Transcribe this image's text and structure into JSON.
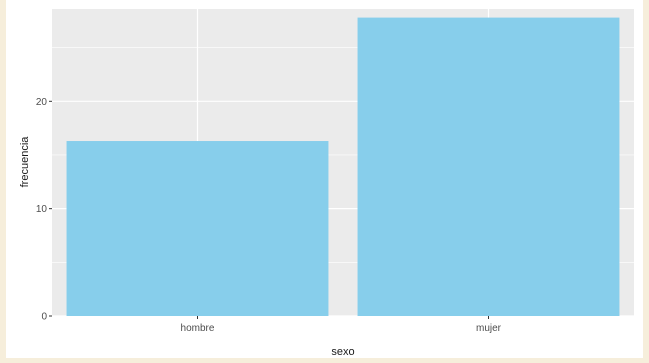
{
  "chart_data": {
    "type": "bar",
    "title": "",
    "xlabel": "sexo",
    "ylabel": "frecuencia",
    "categories": [
      "hombre",
      "mujer"
    ],
    "values": [
      16.3,
      27.8
    ],
    "ylim": [
      0,
      28.6
    ],
    "yticks": [
      0,
      10,
      20
    ],
    "ytick_labels": [
      "0",
      "10",
      "20"
    ],
    "grid": true,
    "legend": "none",
    "colors": {
      "bar": "#87ceeb",
      "panel": "#ebebeb",
      "grid_major": "#ffffff",
      "outer_background": "#f6eedb",
      "plot_background": "#ffffff"
    }
  }
}
